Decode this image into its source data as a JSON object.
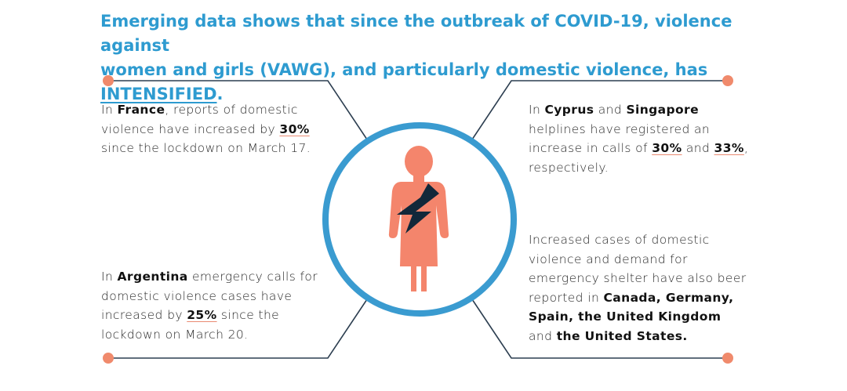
{
  "headline": {
    "line1": "Emerging data shows that since the outbreak of COVID-19, violence against",
    "line2_prefix": "women and girls (VAWG), and particularly domestic violence, has ",
    "line2_emphasis": "INTENSIFIED",
    "line2_suffix": "."
  },
  "france": {
    "t1": "In ",
    "country": "France",
    "t2": ", reports of domestic violence have increased by ",
    "pct": "30%",
    "t3": " since the lockdown on March 17."
  },
  "argentina": {
    "t1": "In ",
    "country": "Argentina",
    "t2": " emergency calls for domestic violence cases have increased by ",
    "pct": "25%",
    "t3": " since the lockdown on March 20."
  },
  "cyprus_singapore": {
    "t1": "In ",
    "country1": "Cyprus",
    "t2": " and ",
    "country2": "Singapore",
    "t3": " helplines have registered an increase in calls of ",
    "pct1": "30%",
    "t4": " and ",
    "pct2": "33%",
    "t5": ", respectively."
  },
  "other_countries": {
    "l1": "Increased cases of domestic",
    "l2": "violence and demand for",
    "l3": "emergency shelter have also beer",
    "l4_prefix": "reported in ",
    "l4_countries": "Canada, Germany,",
    "l5_countries": "Spain, the United Kingdom",
    "l6_prefix": "and ",
    "l6_countries": "the United States."
  },
  "colors": {
    "headline": "#2e9bd0",
    "circle": "#3a9bd0",
    "figure": "#f4856c",
    "lightning": "#12283a",
    "connector": "#2c3e50",
    "dot": "#f08a6c"
  },
  "icons": {
    "center": "woman-figure-icon",
    "bolt": "lightning-bolt-icon"
  }
}
